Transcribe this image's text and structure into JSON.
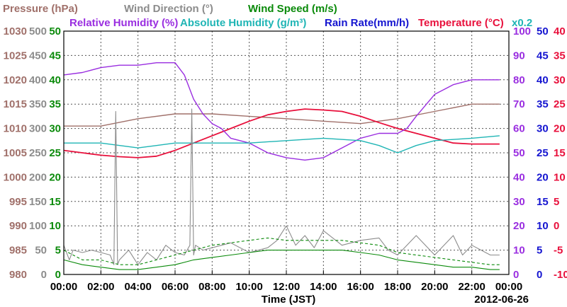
{
  "chart_data": {
    "type": "line",
    "xlabel": "Time (JST)",
    "date": "2012-06-26",
    "x_ticks": [
      "00:00",
      "02:00",
      "04:00",
      "06:00",
      "08:00",
      "10:00",
      "12:00",
      "14:00",
      "16:00",
      "18:00",
      "20:00",
      "22:00",
      "00:00"
    ],
    "xlim": [
      0,
      24
    ],
    "grid": true,
    "legend": [
      {
        "name": "Pressure (hPa)",
        "color": "#a0706a"
      },
      {
        "name": "Wind Direction (°)",
        "color": "#8c8c8c"
      },
      {
        "name": "Wind Speed (m/s)",
        "color": "#0a8a0a"
      },
      {
        "name": "Relative Humidity (%)",
        "color": "#9a2ee0"
      },
      {
        "name": "Absolute Humidity (g/m³)",
        "color": "#1fb5b5"
      },
      {
        "name": "Rain Rate(mm/h)",
        "color": "#1515d0"
      },
      {
        "name": "Temperature (°C)",
        "color": "#e8103c"
      }
    ],
    "multiplier_label": "x0.2",
    "axes": [
      {
        "label": "Pressure (hPa)",
        "side": "left",
        "color": "#a0706a",
        "ticks": [
          "980",
          "985",
          "990",
          "995",
          "1000",
          "1005",
          "1010",
          "1015",
          "1020",
          "1025",
          "1030"
        ],
        "ylim": [
          980,
          1030
        ]
      },
      {
        "label": "Wind Direction (°)",
        "side": "left",
        "color": "#8c8c8c",
        "ticks": [
          "0",
          "50",
          "100",
          "150",
          "200",
          "250",
          "300",
          "350",
          "400",
          "450",
          "500"
        ],
        "ylim": [
          0,
          500
        ]
      },
      {
        "label": "Wind Speed (m/s)",
        "side": "left",
        "color": "#0a8a0a",
        "ticks": [
          "0",
          "5",
          "10",
          "15",
          "20",
          "25",
          "30",
          "35",
          "40",
          "45",
          "50"
        ],
        "ylim": [
          0,
          50
        ]
      },
      {
        "label": "Relative Humidity (%)",
        "side": "right",
        "color": "#9a2ee0",
        "ticks": [
          "0",
          "10",
          "20",
          "30",
          "40",
          "50",
          "60",
          "70",
          "80",
          "90",
          "100"
        ],
        "ylim": [
          0,
          100
        ]
      },
      {
        "label": "Rain Rate(mm/h)",
        "side": "right",
        "color": "#1515d0",
        "ticks": [
          "0",
          "5",
          "10",
          "15",
          "20",
          "25",
          "30",
          "35",
          "40",
          "45",
          "50"
        ],
        "ylim": [
          0,
          50
        ]
      },
      {
        "label": "Temperature (°C)",
        "side": "right",
        "color": "#e8103c",
        "ticks": [
          "-10",
          "-5",
          "0",
          "5",
          "10",
          "15",
          "20",
          "25",
          "30",
          "35",
          "40"
        ],
        "ylim": [
          -10,
          40
        ]
      }
    ],
    "series": [
      {
        "name": "Pressure (hPa)",
        "axis": 0,
        "x": [
          0,
          2,
          4,
          6,
          8,
          10,
          12,
          14,
          16,
          18,
          20,
          22,
          23.5
        ],
        "y": [
          1010.5,
          1010.5,
          1012,
          1013,
          1013,
          1012.5,
          1012,
          1011.5,
          1011,
          1012,
          1013.5,
          1015,
          1015
        ]
      },
      {
        "name": "Temperature (°C)",
        "axis": 5,
        "x": [
          0,
          1,
          2,
          3,
          4,
          5,
          6,
          7,
          8,
          9,
          10,
          11,
          12,
          13,
          14,
          15,
          16,
          17,
          18,
          19,
          20,
          21,
          22,
          23.5
        ],
        "y": [
          15.5,
          15,
          14.5,
          14.2,
          14,
          14.3,
          15.5,
          17,
          18.5,
          20,
          21.5,
          22.8,
          23.5,
          24,
          23.8,
          23.5,
          22.5,
          21.2,
          20,
          19,
          18,
          17,
          16.8,
          16.8
        ]
      },
      {
        "name": "Relative Humidity (%)",
        "axis": 3,
        "x": [
          0,
          1,
          2,
          3,
          4,
          5,
          6,
          6.5,
          7,
          7.5,
          8,
          8.5,
          9,
          10,
          11,
          12,
          13,
          14,
          15,
          16,
          17,
          18,
          18.5,
          19,
          20,
          21,
          22,
          23,
          23.5
        ],
        "y": [
          82,
          83,
          85,
          86,
          86,
          87,
          87,
          82,
          72,
          66,
          62,
          60,
          56,
          54,
          50,
          48,
          47,
          48,
          52,
          56,
          58,
          58,
          60,
          65,
          74,
          78,
          80,
          80,
          80
        ]
      },
      {
        "name": "Absolute Humidity (g/m³)",
        "axis": 3,
        "x": [
          0,
          2,
          4,
          5,
          6,
          8,
          10,
          12,
          14,
          16,
          17,
          18,
          19,
          20,
          22,
          23.5
        ],
        "y": [
          54,
          54,
          52,
          53,
          54,
          54,
          54,
          55,
          56,
          55,
          53,
          50,
          53,
          55,
          56,
          57
        ]
      },
      {
        "name": "Wind Direction (°)",
        "axis": 1,
        "x": [
          0,
          0.3,
          0.5,
          1,
          1.5,
          2,
          2.5,
          2.7,
          2.8,
          2.9,
          3,
          3.5,
          4,
          4.5,
          5,
          5.5,
          6,
          6.5,
          6.8,
          6.9,
          7,
          7.1,
          7.5,
          8,
          9,
          10,
          11,
          11.5,
          12,
          12.5,
          13,
          13.5,
          14,
          15,
          16,
          17,
          17.5,
          18,
          19,
          20,
          20.5,
          21,
          21.5,
          22,
          23,
          23.5
        ],
        "y": [
          60,
          30,
          50,
          45,
          50,
          45,
          40,
          20,
          335,
          20,
          30,
          50,
          20,
          45,
          30,
          60,
          45,
          40,
          60,
          340,
          40,
          60,
          50,
          55,
          65,
          45,
          55,
          70,
          100,
          60,
          80,
          55,
          90,
          60,
          70,
          75,
          50,
          40,
          80,
          40,
          60,
          80,
          40,
          60,
          40,
          40
        ]
      },
      {
        "name": "Wind Speed (m/s)",
        "axis": 2,
        "x": [
          0,
          1,
          2,
          3,
          4,
          5,
          6,
          7,
          8,
          9,
          10,
          11,
          12,
          13,
          14,
          15,
          16,
          17,
          18,
          19,
          20,
          21,
          22,
          23,
          23.5
        ],
        "y": [
          3,
          2,
          1.5,
          1,
          1,
          1.5,
          2,
          3,
          3.5,
          4,
          4.5,
          5,
          5,
          5,
          5,
          5,
          4.5,
          4,
          3,
          2.5,
          2,
          1.5,
          1.5,
          1,
          1
        ]
      },
      {
        "name": "Wind Speed (m/s) gust",
        "axis": 2,
        "x": [
          0,
          1,
          2,
          3,
          4,
          5,
          6,
          7,
          8,
          9,
          10,
          11,
          12,
          13,
          14,
          15,
          16,
          17,
          18,
          19,
          20,
          21,
          22,
          23,
          23.5
        ],
        "y": [
          5,
          3,
          3,
          2,
          2,
          3,
          4,
          5,
          6,
          6.5,
          7,
          7.5,
          7,
          7,
          7,
          7,
          6.5,
          6,
          4.5,
          4,
          3.5,
          3,
          2.5,
          2,
          2
        ]
      }
    ]
  }
}
